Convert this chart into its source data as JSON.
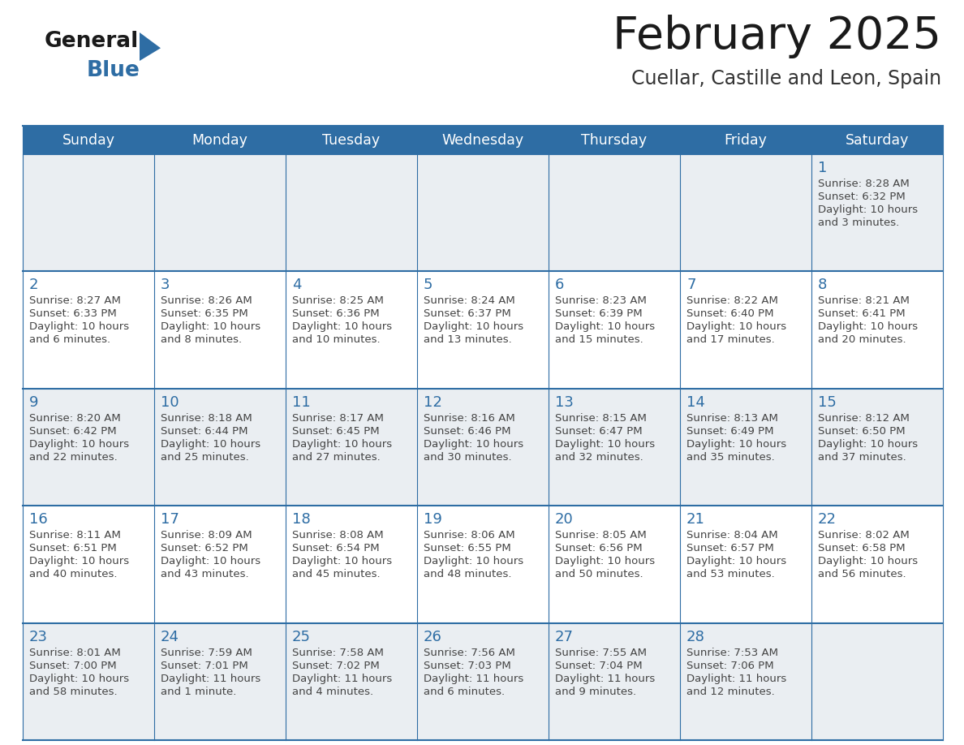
{
  "title": "February 2025",
  "subtitle": "Cuellar, Castille and Leon, Spain",
  "header_bg": "#2E6DA4",
  "header_text": "#FFFFFF",
  "cell_bg": "#FFFFFF",
  "cell_bg_alt": "#F0F4F8",
  "day_number_color": "#2E6DA4",
  "cell_text_color": "#444444",
  "border_color": "#2E6DA4",
  "grid_line_color": "#2E6DA4",
  "days_of_week": [
    "Sunday",
    "Monday",
    "Tuesday",
    "Wednesday",
    "Thursday",
    "Friday",
    "Saturday"
  ],
  "logo_general_color": "#1a1a1a",
  "logo_blue_color": "#2E6DA4",
  "calendar": [
    [
      null,
      null,
      null,
      null,
      null,
      null,
      {
        "day": 1,
        "sunrise": "8:28 AM",
        "sunset": "6:32 PM",
        "daylight": "10 hours and 3 minutes."
      }
    ],
    [
      {
        "day": 2,
        "sunrise": "8:27 AM",
        "sunset": "6:33 PM",
        "daylight": "10 hours and 6 minutes."
      },
      {
        "day": 3,
        "sunrise": "8:26 AM",
        "sunset": "6:35 PM",
        "daylight": "10 hours and 8 minutes."
      },
      {
        "day": 4,
        "sunrise": "8:25 AM",
        "sunset": "6:36 PM",
        "daylight": "10 hours and 10 minutes."
      },
      {
        "day": 5,
        "sunrise": "8:24 AM",
        "sunset": "6:37 PM",
        "daylight": "10 hours and 13 minutes."
      },
      {
        "day": 6,
        "sunrise": "8:23 AM",
        "sunset": "6:39 PM",
        "daylight": "10 hours and 15 minutes."
      },
      {
        "day": 7,
        "sunrise": "8:22 AM",
        "sunset": "6:40 PM",
        "daylight": "10 hours and 17 minutes."
      },
      {
        "day": 8,
        "sunrise": "8:21 AM",
        "sunset": "6:41 PM",
        "daylight": "10 hours and 20 minutes."
      }
    ],
    [
      {
        "day": 9,
        "sunrise": "8:20 AM",
        "sunset": "6:42 PM",
        "daylight": "10 hours and 22 minutes."
      },
      {
        "day": 10,
        "sunrise": "8:18 AM",
        "sunset": "6:44 PM",
        "daylight": "10 hours and 25 minutes."
      },
      {
        "day": 11,
        "sunrise": "8:17 AM",
        "sunset": "6:45 PM",
        "daylight": "10 hours and 27 minutes."
      },
      {
        "day": 12,
        "sunrise": "8:16 AM",
        "sunset": "6:46 PM",
        "daylight": "10 hours and 30 minutes."
      },
      {
        "day": 13,
        "sunrise": "8:15 AM",
        "sunset": "6:47 PM",
        "daylight": "10 hours and 32 minutes."
      },
      {
        "day": 14,
        "sunrise": "8:13 AM",
        "sunset": "6:49 PM",
        "daylight": "10 hours and 35 minutes."
      },
      {
        "day": 15,
        "sunrise": "8:12 AM",
        "sunset": "6:50 PM",
        "daylight": "10 hours and 37 minutes."
      }
    ],
    [
      {
        "day": 16,
        "sunrise": "8:11 AM",
        "sunset": "6:51 PM",
        "daylight": "10 hours and 40 minutes."
      },
      {
        "day": 17,
        "sunrise": "8:09 AM",
        "sunset": "6:52 PM",
        "daylight": "10 hours and 43 minutes."
      },
      {
        "day": 18,
        "sunrise": "8:08 AM",
        "sunset": "6:54 PM",
        "daylight": "10 hours and 45 minutes."
      },
      {
        "day": 19,
        "sunrise": "8:06 AM",
        "sunset": "6:55 PM",
        "daylight": "10 hours and 48 minutes."
      },
      {
        "day": 20,
        "sunrise": "8:05 AM",
        "sunset": "6:56 PM",
        "daylight": "10 hours and 50 minutes."
      },
      {
        "day": 21,
        "sunrise": "8:04 AM",
        "sunset": "6:57 PM",
        "daylight": "10 hours and 53 minutes."
      },
      {
        "day": 22,
        "sunrise": "8:02 AM",
        "sunset": "6:58 PM",
        "daylight": "10 hours and 56 minutes."
      }
    ],
    [
      {
        "day": 23,
        "sunrise": "8:01 AM",
        "sunset": "7:00 PM",
        "daylight": "10 hours and 58 minutes."
      },
      {
        "day": 24,
        "sunrise": "7:59 AM",
        "sunset": "7:01 PM",
        "daylight": "11 hours and 1 minute."
      },
      {
        "day": 25,
        "sunrise": "7:58 AM",
        "sunset": "7:02 PM",
        "daylight": "11 hours and 4 minutes."
      },
      {
        "day": 26,
        "sunrise": "7:56 AM",
        "sunset": "7:03 PM",
        "daylight": "11 hours and 6 minutes."
      },
      {
        "day": 27,
        "sunrise": "7:55 AM",
        "sunset": "7:04 PM",
        "daylight": "11 hours and 9 minutes."
      },
      {
        "day": 28,
        "sunrise": "7:53 AM",
        "sunset": "7:06 PM",
        "daylight": "11 hours and 12 minutes."
      },
      null
    ]
  ]
}
